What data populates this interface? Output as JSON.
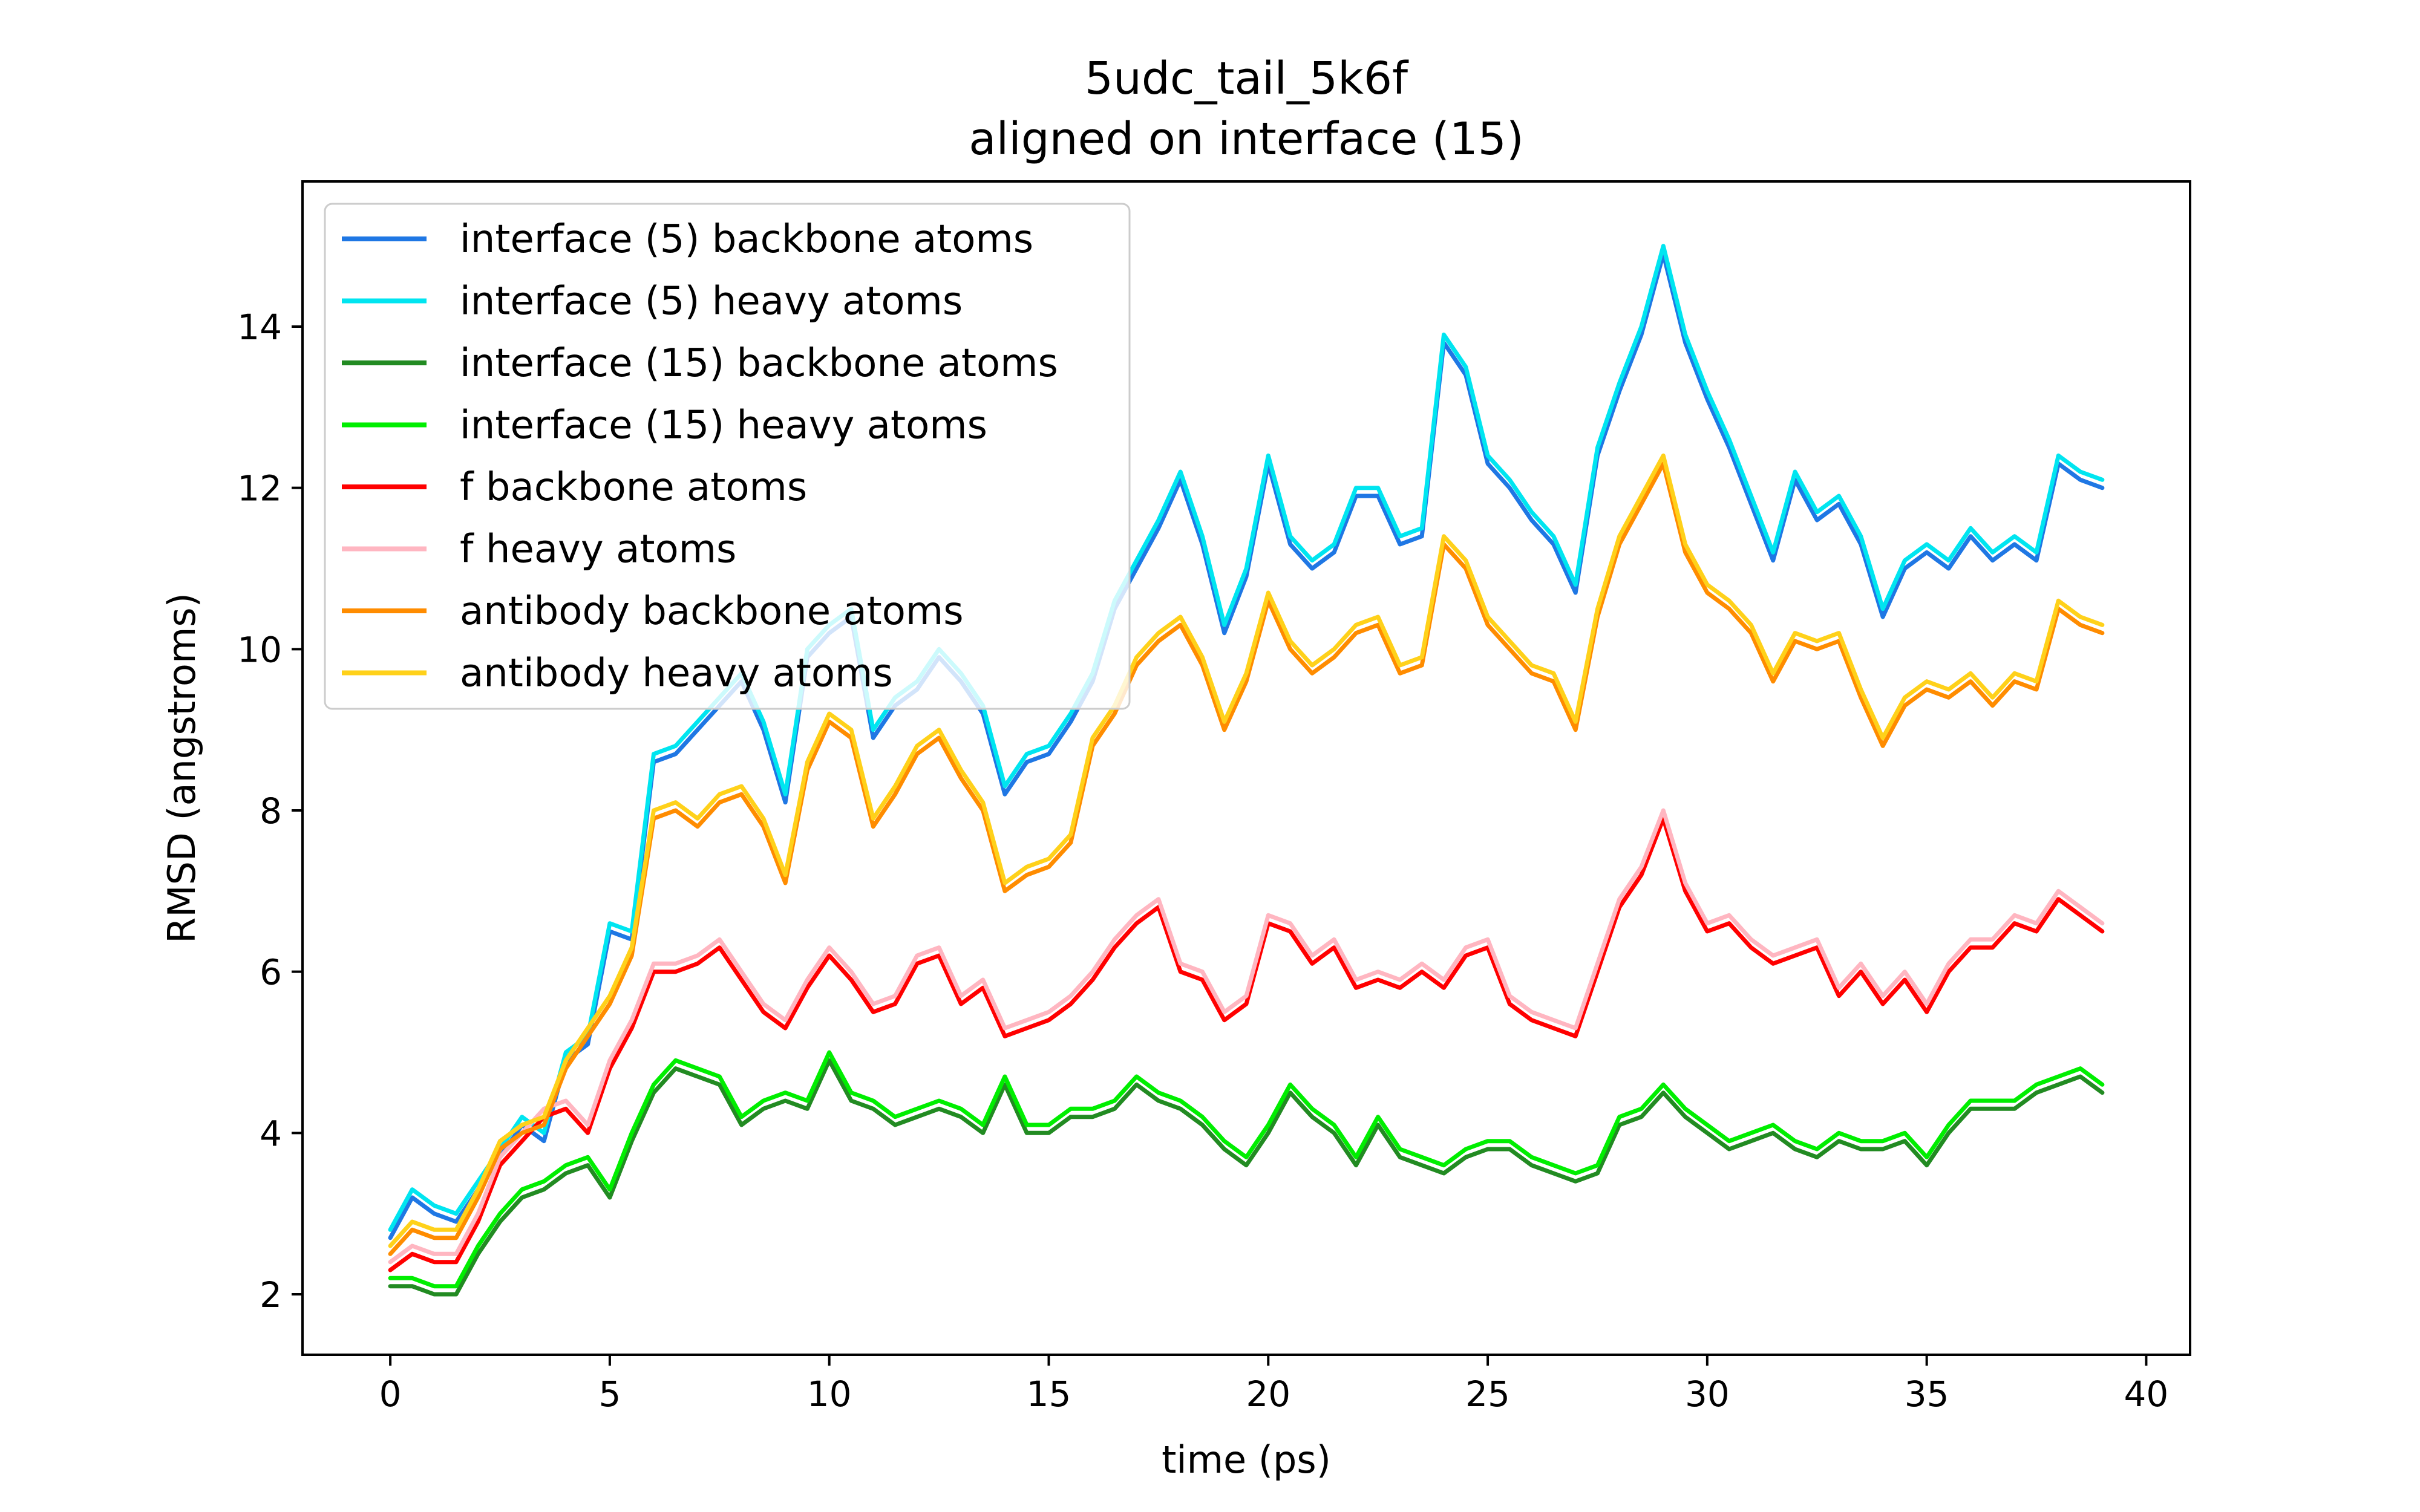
{
  "chart_data": {
    "type": "line",
    "title": "5udc_tail_5k6f",
    "subtitle": "aligned on interface (15)",
    "xlabel": "time (ps)",
    "ylabel": "RMSD (angstroms)",
    "xlim": [
      -2,
      41
    ],
    "ylim": [
      1.25,
      15.8
    ],
    "xticks": [
      0,
      5,
      10,
      15,
      20,
      25,
      30,
      35,
      40
    ],
    "yticks": [
      2,
      4,
      6,
      8,
      10,
      12,
      14
    ],
    "grid": false,
    "legend_position": "top-left",
    "x": [
      0,
      0.5,
      1,
      1.5,
      2,
      2.5,
      3,
      3.5,
      4,
      4.5,
      5,
      5.5,
      6,
      6.5,
      7,
      7.5,
      8,
      8.5,
      9,
      9.5,
      10,
      10.5,
      11,
      11.5,
      12,
      12.5,
      13,
      13.5,
      14,
      14.5,
      15,
      15.5,
      16,
      16.5,
      17,
      17.5,
      18,
      18.5,
      19,
      19.5,
      20,
      20.5,
      21,
      21.5,
      22,
      22.5,
      23,
      23.5,
      24,
      24.5,
      25,
      25.5,
      26,
      26.5,
      27,
      27.5,
      28,
      28.5,
      29,
      29.5,
      30,
      30.5,
      31,
      31.5,
      32,
      32.5,
      33,
      33.5,
      34,
      34.5,
      35,
      35.5,
      36,
      36.5,
      37,
      37.5,
      38,
      38.5,
      39
    ],
    "series": [
      {
        "name": "interface (5) backbone atoms",
        "color": "#1f77e4",
        "values": [
          2.7,
          3.2,
          3.0,
          2.9,
          3.3,
          3.7,
          4.1,
          3.9,
          4.9,
          5.1,
          6.5,
          6.4,
          8.6,
          8.7,
          9.0,
          9.3,
          9.6,
          9.0,
          8.1,
          9.9,
          10.2,
          10.4,
          8.9,
          9.3,
          9.5,
          9.9,
          9.6,
          9.2,
          8.2,
          8.6,
          8.7,
          9.1,
          9.6,
          10.5,
          11.0,
          11.5,
          12.1,
          11.3,
          10.2,
          10.9,
          12.3,
          11.3,
          11.0,
          11.2,
          11.9,
          11.9,
          11.3,
          11.4,
          13.8,
          13.4,
          12.3,
          12.0,
          11.6,
          11.3,
          10.7,
          12.4,
          13.2,
          13.9,
          14.9,
          13.8,
          13.1,
          12.5,
          11.8,
          11.1,
          12.1,
          11.6,
          11.8,
          11.3,
          10.4,
          11.0,
          11.2,
          11.0,
          11.4,
          11.1,
          11.3,
          11.1,
          12.3,
          12.1,
          12.0
        ]
      },
      {
        "name": "interface (5) heavy atoms",
        "color": "#00e5f0",
        "values": [
          2.8,
          3.3,
          3.1,
          3.0,
          3.4,
          3.8,
          4.2,
          4.0,
          5.0,
          5.2,
          6.6,
          6.5,
          8.7,
          8.8,
          9.1,
          9.4,
          9.7,
          9.1,
          8.2,
          10.0,
          10.3,
          10.5,
          9.0,
          9.4,
          9.6,
          10.0,
          9.7,
          9.3,
          8.3,
          8.7,
          8.8,
          9.2,
          9.7,
          10.6,
          11.1,
          11.6,
          12.2,
          11.4,
          10.3,
          11.0,
          12.4,
          11.4,
          11.1,
          11.3,
          12.0,
          12.0,
          11.4,
          11.5,
          13.9,
          13.5,
          12.4,
          12.1,
          11.7,
          11.4,
          10.8,
          12.5,
          13.3,
          14.0,
          15.0,
          13.9,
          13.2,
          12.6,
          11.9,
          11.2,
          12.2,
          11.7,
          11.9,
          11.4,
          10.5,
          11.1,
          11.3,
          11.1,
          11.5,
          11.2,
          11.4,
          11.2,
          12.4,
          12.2,
          12.1
        ]
      },
      {
        "name": "interface (15) backbone atoms",
        "color": "#228b22",
        "values": [
          2.1,
          2.1,
          2.0,
          2.0,
          2.5,
          2.9,
          3.2,
          3.3,
          3.5,
          3.6,
          3.2,
          3.9,
          4.5,
          4.8,
          4.7,
          4.6,
          4.1,
          4.3,
          4.4,
          4.3,
          4.9,
          4.4,
          4.3,
          4.1,
          4.2,
          4.3,
          4.2,
          4.0,
          4.6,
          4.0,
          4.0,
          4.2,
          4.2,
          4.3,
          4.6,
          4.4,
          4.3,
          4.1,
          3.8,
          3.6,
          4.0,
          4.5,
          4.2,
          4.0,
          3.6,
          4.1,
          3.7,
          3.6,
          3.5,
          3.7,
          3.8,
          3.8,
          3.6,
          3.5,
          3.4,
          3.5,
          4.1,
          4.2,
          4.5,
          4.2,
          4.0,
          3.8,
          3.9,
          4.0,
          3.8,
          3.7,
          3.9,
          3.8,
          3.8,
          3.9,
          3.6,
          4.0,
          4.3,
          4.3,
          4.3,
          4.5,
          4.6,
          4.7,
          4.5
        ]
      },
      {
        "name": "interface (15) heavy atoms",
        "color": "#00ee00",
        "values": [
          2.2,
          2.2,
          2.1,
          2.1,
          2.6,
          3.0,
          3.3,
          3.4,
          3.6,
          3.7,
          3.3,
          4.0,
          4.6,
          4.9,
          4.8,
          4.7,
          4.2,
          4.4,
          4.5,
          4.4,
          5.0,
          4.5,
          4.4,
          4.2,
          4.3,
          4.4,
          4.3,
          4.1,
          4.7,
          4.1,
          4.1,
          4.3,
          4.3,
          4.4,
          4.7,
          4.5,
          4.4,
          4.2,
          3.9,
          3.7,
          4.1,
          4.6,
          4.3,
          4.1,
          3.7,
          4.2,
          3.8,
          3.7,
          3.6,
          3.8,
          3.9,
          3.9,
          3.7,
          3.6,
          3.5,
          3.6,
          4.2,
          4.3,
          4.6,
          4.3,
          4.1,
          3.9,
          4.0,
          4.1,
          3.9,
          3.8,
          4.0,
          3.9,
          3.9,
          4.0,
          3.7,
          4.1,
          4.4,
          4.4,
          4.4,
          4.6,
          4.7,
          4.8,
          4.6
        ]
      },
      {
        "name": "f backbone atoms",
        "color": "#ff0000",
        "values": [
          2.3,
          2.5,
          2.4,
          2.4,
          2.9,
          3.6,
          3.9,
          4.2,
          4.3,
          4.0,
          4.8,
          5.3,
          6.0,
          6.0,
          6.1,
          6.3,
          5.9,
          5.5,
          5.3,
          5.8,
          6.2,
          5.9,
          5.5,
          5.6,
          6.1,
          6.2,
          5.6,
          5.8,
          5.2,
          5.3,
          5.4,
          5.6,
          5.9,
          6.3,
          6.6,
          6.8,
          6.0,
          5.9,
          5.4,
          5.6,
          6.6,
          6.5,
          6.1,
          6.3,
          5.8,
          5.9,
          5.8,
          6.0,
          5.8,
          6.2,
          6.3,
          5.6,
          5.4,
          5.3,
          5.2,
          6.0,
          6.8,
          7.2,
          7.9,
          7.0,
          6.5,
          6.6,
          6.3,
          6.1,
          6.2,
          6.3,
          5.7,
          6.0,
          5.6,
          5.9,
          5.5,
          6.0,
          6.3,
          6.3,
          6.6,
          6.5,
          6.9,
          6.7,
          6.5
        ]
      },
      {
        "name": "f heavy atoms",
        "color": "#ffb6c1",
        "values": [
          2.4,
          2.6,
          2.5,
          2.5,
          3.0,
          3.7,
          4.0,
          4.3,
          4.4,
          4.1,
          4.9,
          5.4,
          6.1,
          6.1,
          6.2,
          6.4,
          6.0,
          5.6,
          5.4,
          5.9,
          6.3,
          6.0,
          5.6,
          5.7,
          6.2,
          6.3,
          5.7,
          5.9,
          5.3,
          5.4,
          5.5,
          5.7,
          6.0,
          6.4,
          6.7,
          6.9,
          6.1,
          6.0,
          5.5,
          5.7,
          6.7,
          6.6,
          6.2,
          6.4,
          5.9,
          6.0,
          5.9,
          6.1,
          5.9,
          6.3,
          6.4,
          5.7,
          5.5,
          5.4,
          5.3,
          6.1,
          6.9,
          7.3,
          8.0,
          7.1,
          6.6,
          6.7,
          6.4,
          6.2,
          6.3,
          6.4,
          5.8,
          6.1,
          5.7,
          6.0,
          5.6,
          6.1,
          6.4,
          6.4,
          6.7,
          6.6,
          7.0,
          6.8,
          6.6
        ]
      },
      {
        "name": "antibody backbone atoms",
        "color": "#ff8c00",
        "values": [
          2.5,
          2.8,
          2.7,
          2.7,
          3.2,
          3.8,
          4.0,
          4.1,
          4.8,
          5.2,
          5.6,
          6.2,
          7.9,
          8.0,
          7.8,
          8.1,
          8.2,
          7.8,
          7.1,
          8.5,
          9.1,
          8.9,
          7.8,
          8.2,
          8.7,
          8.9,
          8.4,
          8.0,
          7.0,
          7.2,
          7.3,
          7.6,
          8.8,
          9.2,
          9.8,
          10.1,
          10.3,
          9.8,
          9.0,
          9.6,
          10.6,
          10.0,
          9.7,
          9.9,
          10.2,
          10.3,
          9.7,
          9.8,
          11.3,
          11.0,
          10.3,
          10.0,
          9.7,
          9.6,
          9.0,
          10.4,
          11.3,
          11.8,
          12.3,
          11.2,
          10.7,
          10.5,
          10.2,
          9.6,
          10.1,
          10.0,
          10.1,
          9.4,
          8.8,
          9.3,
          9.5,
          9.4,
          9.6,
          9.3,
          9.6,
          9.5,
          10.5,
          10.3,
          10.2
        ]
      },
      {
        "name": "antibody heavy atoms",
        "color": "#ffd11a",
        "values": [
          2.6,
          2.9,
          2.8,
          2.8,
          3.3,
          3.9,
          4.1,
          4.2,
          4.9,
          5.3,
          5.7,
          6.3,
          8.0,
          8.1,
          7.9,
          8.2,
          8.3,
          7.9,
          7.2,
          8.6,
          9.2,
          9.0,
          7.9,
          8.3,
          8.8,
          9.0,
          8.5,
          8.1,
          7.1,
          7.3,
          7.4,
          7.7,
          8.9,
          9.3,
          9.9,
          10.2,
          10.4,
          9.9,
          9.1,
          9.7,
          10.7,
          10.1,
          9.8,
          10.0,
          10.3,
          10.4,
          9.8,
          9.9,
          11.4,
          11.1,
          10.4,
          10.1,
          9.8,
          9.7,
          9.1,
          10.5,
          11.4,
          11.9,
          12.4,
          11.3,
          10.8,
          10.6,
          10.3,
          9.7,
          10.2,
          10.1,
          10.2,
          9.5,
          8.9,
          9.4,
          9.6,
          9.5,
          9.7,
          9.4,
          9.7,
          9.6,
          10.6,
          10.4,
          10.3
        ]
      }
    ]
  }
}
